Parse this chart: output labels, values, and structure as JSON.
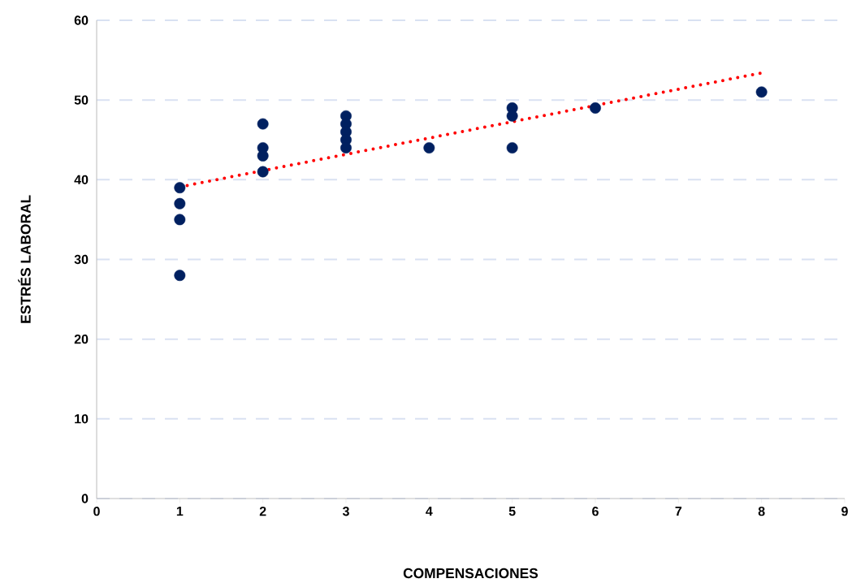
{
  "chart_data": {
    "type": "scatter",
    "xlabel": "COMPENSACIONES",
    "ylabel": "ESTRÉS LABORAL",
    "xlim": [
      0,
      9
    ],
    "ylim": [
      0,
      60
    ],
    "xticks": [
      0,
      1,
      2,
      3,
      4,
      5,
      6,
      7,
      8,
      9
    ],
    "yticks": [
      0,
      10,
      20,
      30,
      40,
      50,
      60
    ],
    "grid": "y",
    "series": [
      {
        "color": "#002060",
        "marker": "circle",
        "x": [
          1,
          1,
          1,
          1,
          2,
          2,
          2,
          2,
          3,
          3,
          3,
          3,
          3,
          4,
          5,
          5,
          5,
          6,
          8
        ],
        "values": [
          39,
          37,
          35,
          28,
          47,
          44,
          43,
          41,
          48,
          47,
          46,
          45,
          44,
          44,
          49,
          48,
          44,
          49,
          51
        ]
      },
      {
        "type": "line",
        "color": "#ff0000",
        "line_style": "dotted",
        "marker": "none",
        "x": [
          1,
          8
        ],
        "values": [
          39.1,
          53.4
        ]
      }
    ]
  }
}
